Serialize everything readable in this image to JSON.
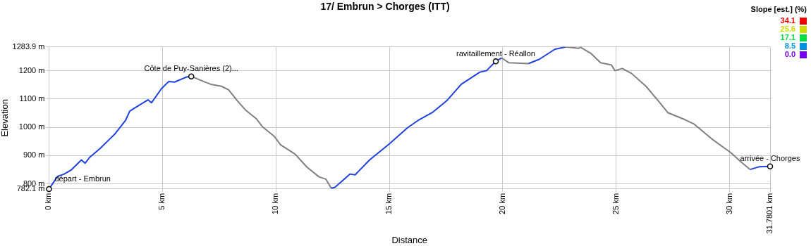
{
  "chart_data": {
    "type": "line",
    "title": "17/ Embrun > Chorges (ITT)",
    "xlabel": "Distance",
    "ylabel": "Elevation",
    "clabel": "Slope [est.] (%)",
    "cticks": [
      {
        "value": 34.1,
        "label": "34.1"
      },
      {
        "value": 25.6,
        "label": "25.6"
      },
      {
        "value": 17.1,
        "label": "17.1"
      },
      {
        "value": 8.5,
        "label": "8.5"
      },
      {
        "value": 0,
        "label": "0.0"
      }
    ],
    "xlim": [
      0,
      31.7801
    ],
    "xticks": [
      {
        "value": 0,
        "label": "0 km"
      },
      {
        "value": 5,
        "label": "5 km"
      },
      {
        "value": 10,
        "label": "10 km"
      },
      {
        "value": 15,
        "label": "15 km"
      },
      {
        "value": 20,
        "label": "20 km"
      },
      {
        "value": 25,
        "label": "25 km"
      },
      {
        "value": 30,
        "label": "30 km"
      },
      {
        "value": 31.7801,
        "label": "31.7801 km"
      }
    ],
    "ylim": [
      782.1,
      1283.9
    ],
    "yticks": [
      {
        "value": 782.1,
        "label": "782.1 m"
      },
      {
        "value": 800,
        "label": "800 m"
      },
      {
        "value": 900,
        "label": "900 m"
      },
      {
        "value": 1000,
        "label": "1000 m"
      },
      {
        "value": 1100,
        "label": "1100 m"
      },
      {
        "value": 1200,
        "label": "1200 m"
      },
      {
        "value": 1283.9,
        "label": "1283.9 m"
      }
    ],
    "grid": true,
    "x": [
      0,
      0.38,
      0.67,
      0.99,
      1.43,
      1.59,
      1.78,
      2.26,
      2.58,
      2.9,
      3.37,
      3.56,
      3.79,
      4.36,
      4.52,
      4.96,
      5.28,
      5.54,
      6.07,
      6.27,
      6.81,
      7.13,
      7.6,
      7.92,
      8.3,
      8.65,
      9.13,
      9.42,
      9.93,
      10.21,
      10.85,
      11.36,
      11.9,
      12.2,
      12.44,
      12.6,
      13.27,
      13.49,
      14.13,
      14.99,
      15.81,
      16.26,
      16.89,
      17.53,
      18.17,
      18.99,
      19.28,
      19.69,
      19.95,
      20.27,
      21.13,
      21.6,
      22.3,
      22.78,
      23.35,
      23.42,
      23.9,
      24.31,
      24.79,
      24.94,
      25.26,
      25.68,
      26.31,
      26.85,
      27.27,
      28.03,
      28.44,
      29.18,
      30.04,
      30.45,
      30.9,
      31.31,
      31.78
    ],
    "series": [
      {
        "color": "#2040e0",
        "values": [
          782.1,
          827,
          835,
          850,
          885,
          873,
          893,
          926,
          951,
          976,
          1024,
          1057,
          1069,
          1097,
          1087,
          1137,
          1162,
          1160,
          1178,
          1180,
          null,
          null,
          null,
          null,
          null,
          null,
          null,
          null,
          null,
          null,
          null,
          null,
          null,
          null,
          785,
          788,
          835,
          832,
          885,
          941,
          999,
          1024,
          1052,
          1094,
          1152,
          1195,
          1200,
          1233,
          1245,
          null,
          1225,
          1240,
          1276,
          1283.9,
          null,
          null,
          null,
          null,
          null,
          null,
          null,
          null,
          null,
          null,
          null,
          null,
          null,
          null,
          null,
          null,
          851,
          861,
          862
        ]
      },
      {
        "color": "#808080",
        "values": [
          null,
          null,
          null,
          null,
          null,
          null,
          null,
          null,
          null,
          null,
          null,
          null,
          null,
          null,
          null,
          null,
          null,
          null,
          null,
          1180,
          1162,
          1152,
          1145,
          1132,
          1094,
          1062,
          1031,
          1001,
          968,
          938,
          905,
          860,
          825,
          817,
          785,
          null,
          null,
          null,
          null,
          null,
          null,
          null,
          null,
          null,
          null,
          null,
          null,
          null,
          1245,
          1228,
          1225,
          null,
          null,
          1283.9,
          1279,
          1283,
          1260,
          1228,
          1220,
          1200,
          1208,
          1190,
          1145,
          1094,
          1052,
          1027,
          1011,
          961,
          911,
          881,
          851,
          null,
          null
        ]
      }
    ],
    "annotations": [
      {
        "text": "départ - Embrun",
        "x": 0,
        "y": 782.1
      },
      {
        "text": "Côte de Puy-Sanières (2)...",
        "x": 6.27,
        "y": 1180
      },
      {
        "text": "ravitaillement - Réallon",
        "x": 19.69,
        "y": 1233
      },
      {
        "text": "arrivée - Chorges",
        "x": 31.78,
        "y": 862
      }
    ]
  }
}
